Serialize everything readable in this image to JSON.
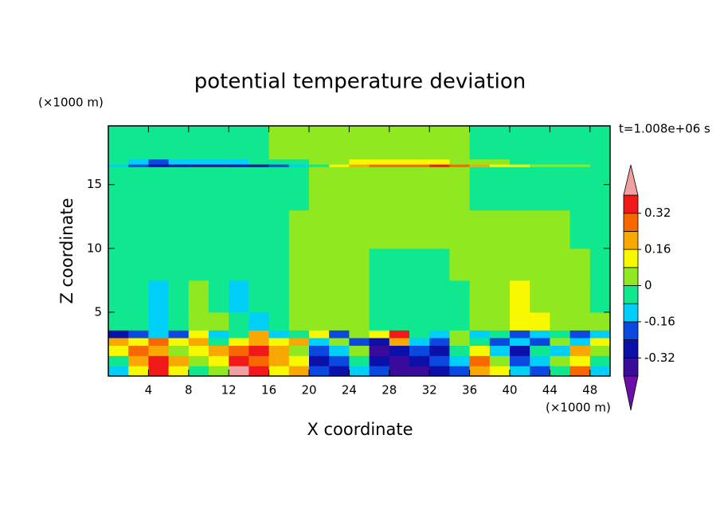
{
  "chart_data": {
    "type": "contourf",
    "title": "potential temperature deviation",
    "xlabel": "X coordinate",
    "ylabel": "Z coordinate",
    "x_unit": "(×1000 m)",
    "y_unit": "(×1000 m)",
    "time_label": "t=1.008e+06 s",
    "xlim": [
      0,
      50
    ],
    "ylim": [
      0,
      19.6
    ],
    "xticks": [
      4,
      8,
      12,
      16,
      20,
      24,
      28,
      32,
      36,
      40,
      44,
      48
    ],
    "yticks": [
      5,
      10,
      15
    ],
    "xbins": [
      0,
      2,
      4,
      6,
      8,
      10,
      12,
      14,
      16,
      18,
      20,
      22,
      24,
      26,
      28,
      30,
      32,
      34,
      36,
      38,
      40,
      42,
      44,
      46,
      48,
      50
    ],
    "ybins": [
      0,
      0.8,
      1.6,
      2.4,
      3.0,
      3.6,
      5,
      7.5,
      10,
      13,
      16.4,
      16.6,
      17.0,
      19.6
    ],
    "levels": [
      -0.4,
      -0.32,
      -0.24,
      -0.16,
      -0.08,
      0,
      0.08,
      0.16,
      0.24,
      0.32,
      0.4
    ],
    "colors": [
      "#6a10a8",
      "#3a0a9a",
      "#0a10a8",
      "#0a48e0",
      "#00d0f8",
      "#10e890",
      "#90e820",
      "#f8f800",
      "#f8a800",
      "#f86800",
      "#f01818",
      "#f0a0a0"
    ],
    "colorbar_ticks": [
      -0.32,
      -0.16,
      0,
      0.16,
      0.32
    ],
    "values": [
      [
        -0.12,
        0.12,
        0.36,
        0.12,
        -0.04,
        0.04,
        0.45,
        0.36,
        0.12,
        0.2,
        -0.2,
        -0.28,
        -0.12,
        -0.2,
        -0.36,
        -0.36,
        -0.28,
        -0.2,
        0.2,
        0.12,
        -0.12,
        -0.2,
        -0.04,
        0.28,
        -0.12
      ],
      [
        -0.04,
        0.2,
        0.36,
        0.2,
        0.04,
        0.12,
        0.36,
        0.28,
        0.2,
        0.12,
        -0.28,
        -0.2,
        -0.04,
        -0.28,
        -0.36,
        -0.28,
        -0.2,
        -0.12,
        0.28,
        0.04,
        -0.2,
        -0.12,
        0.04,
        0.12,
        -0.04
      ],
      [
        0.12,
        0.28,
        0.2,
        0.04,
        0.12,
        0.2,
        0.28,
        0.36,
        0.2,
        0.04,
        -0.2,
        -0.12,
        0.04,
        -0.36,
        -0.28,
        -0.2,
        -0.28,
        -0.04,
        0.12,
        -0.12,
        -0.28,
        -0.04,
        -0.12,
        0.2,
        0.04
      ],
      [
        0.2,
        0.12,
        0.28,
        0.12,
        0.2,
        -0.04,
        0.12,
        0.2,
        0.12,
        0.2,
        -0.12,
        0.04,
        -0.2,
        -0.28,
        0.2,
        -0.12,
        -0.2,
        0.04,
        -0.04,
        -0.2,
        -0.12,
        -0.2,
        0.04,
        -0.12,
        0.12
      ],
      [
        -0.28,
        -0.2,
        -0.12,
        -0.2,
        0.12,
        -0.12,
        -0.04,
        0.2,
        -0.12,
        -0.04,
        0.12,
        -0.2,
        0.04,
        0.12,
        0.36,
        -0.04,
        -0.12,
        0.04,
        -0.12,
        -0.04,
        -0.2,
        -0.12,
        -0.04,
        -0.2,
        -0.12
      ],
      [
        -0.04,
        -0.04,
        -0.12,
        -0.04,
        0.04,
        0.04,
        -0.04,
        -0.12,
        -0.04,
        0.04,
        0.04,
        0.04,
        0.04,
        -0.04,
        -0.04,
        -0.04,
        -0.04,
        -0.04,
        0.04,
        0.04,
        0.12,
        0.12,
        0.04,
        0.04,
        0.04
      ],
      [
        -0.04,
        -0.04,
        -0.12,
        -0.04,
        0.04,
        -0.04,
        -0.12,
        -0.04,
        -0.04,
        0.04,
        0.04,
        0.04,
        0.04,
        -0.04,
        -0.04,
        -0.04,
        -0.04,
        -0.04,
        0.04,
        0.04,
        0.12,
        0.04,
        0.04,
        0.04,
        -0.04
      ],
      [
        -0.04,
        -0.04,
        -0.04,
        -0.04,
        -0.04,
        -0.04,
        -0.04,
        -0.04,
        -0.04,
        0.04,
        0.04,
        0.04,
        0.04,
        -0.04,
        -0.04,
        -0.04,
        -0.04,
        0.04,
        0.04,
        0.04,
        0.04,
        0.04,
        0.04,
        0.04,
        -0.04
      ],
      [
        -0.04,
        -0.04,
        -0.04,
        -0.04,
        -0.04,
        -0.04,
        -0.04,
        -0.04,
        -0.04,
        0.04,
        0.04,
        0.04,
        0.04,
        0.04,
        0.04,
        0.04,
        0.04,
        0.04,
        0.04,
        0.04,
        0.04,
        0.04,
        0.04,
        -0.04,
        -0.04
      ],
      [
        -0.04,
        -0.04,
        -0.04,
        -0.04,
        -0.04,
        -0.04,
        -0.04,
        -0.04,
        -0.04,
        -0.04,
        0.04,
        0.04,
        0.04,
        0.04,
        0.04,
        0.04,
        0.04,
        0.04,
        -0.04,
        -0.04,
        -0.04,
        -0.04,
        -0.04,
        -0.04,
        -0.04
      ],
      [
        -0.12,
        -0.2,
        -0.28,
        -0.28,
        -0.36,
        -0.36,
        -0.28,
        -0.28,
        -0.2,
        -0.12,
        -0.04,
        0.12,
        0.2,
        0.28,
        0.28,
        0.28,
        0.36,
        0.28,
        0.2,
        0.12,
        0.12,
        0.04,
        0.04,
        0.04,
        -0.04
      ],
      [
        -0.04,
        -0.12,
        -0.2,
        -0.12,
        -0.12,
        -0.12,
        -0.12,
        -0.04,
        -0.04,
        -0.04,
        0.04,
        0.04,
        0.12,
        0.12,
        0.12,
        0.12,
        0.12,
        0.04,
        0.04,
        0.04,
        -0.04,
        -0.04,
        -0.04,
        -0.04,
        -0.04
      ],
      [
        -0.04,
        -0.04,
        -0.04,
        -0.04,
        -0.04,
        -0.04,
        -0.04,
        -0.04,
        0.04,
        0.04,
        0.04,
        0.04,
        0.04,
        0.04,
        0.04,
        0.04,
        0.04,
        0.04,
        -0.04,
        -0.04,
        -0.04,
        -0.04,
        -0.04,
        -0.04,
        -0.04
      ]
    ]
  }
}
